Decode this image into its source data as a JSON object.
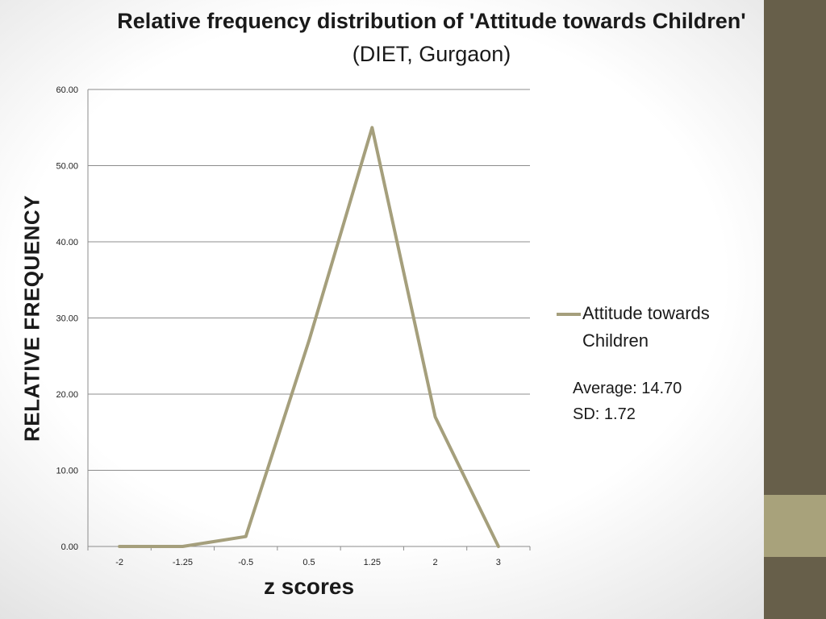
{
  "slide": {
    "title_bold": "Relative frequency distribution of 'Attitude towards Children'",
    "title_normal": "(DIET, Gurgaon)",
    "stats": {
      "average": "Average: 14.70",
      "sd": "SD: 1.72"
    },
    "colors": {
      "sidebar": "#675f4a",
      "sidebar_accent": "#a8a27b"
    }
  },
  "chart_data": {
    "type": "line",
    "title": "Relative frequency distribution of 'Attitude towards Children' (DIET, Gurgaon)",
    "xlabel": "z scores",
    "ylabel": "RELATIVE FREQUENCY",
    "categories": [
      "-2",
      "-1.25",
      "-0.5",
      "0.5",
      "1.25",
      "2",
      "3"
    ],
    "series": [
      {
        "name": "Attitude towards Children",
        "values": [
          0.0,
          0.0,
          1.3,
          27.0,
          55.0,
          17.0,
          0.0
        ],
        "color": "#a59f7c"
      }
    ],
    "ylim": [
      0,
      60
    ],
    "yticks": [
      "0.00",
      "10.00",
      "20.00",
      "30.00",
      "40.00",
      "50.00",
      "60.00"
    ],
    "grid": true,
    "legend": "right"
  }
}
